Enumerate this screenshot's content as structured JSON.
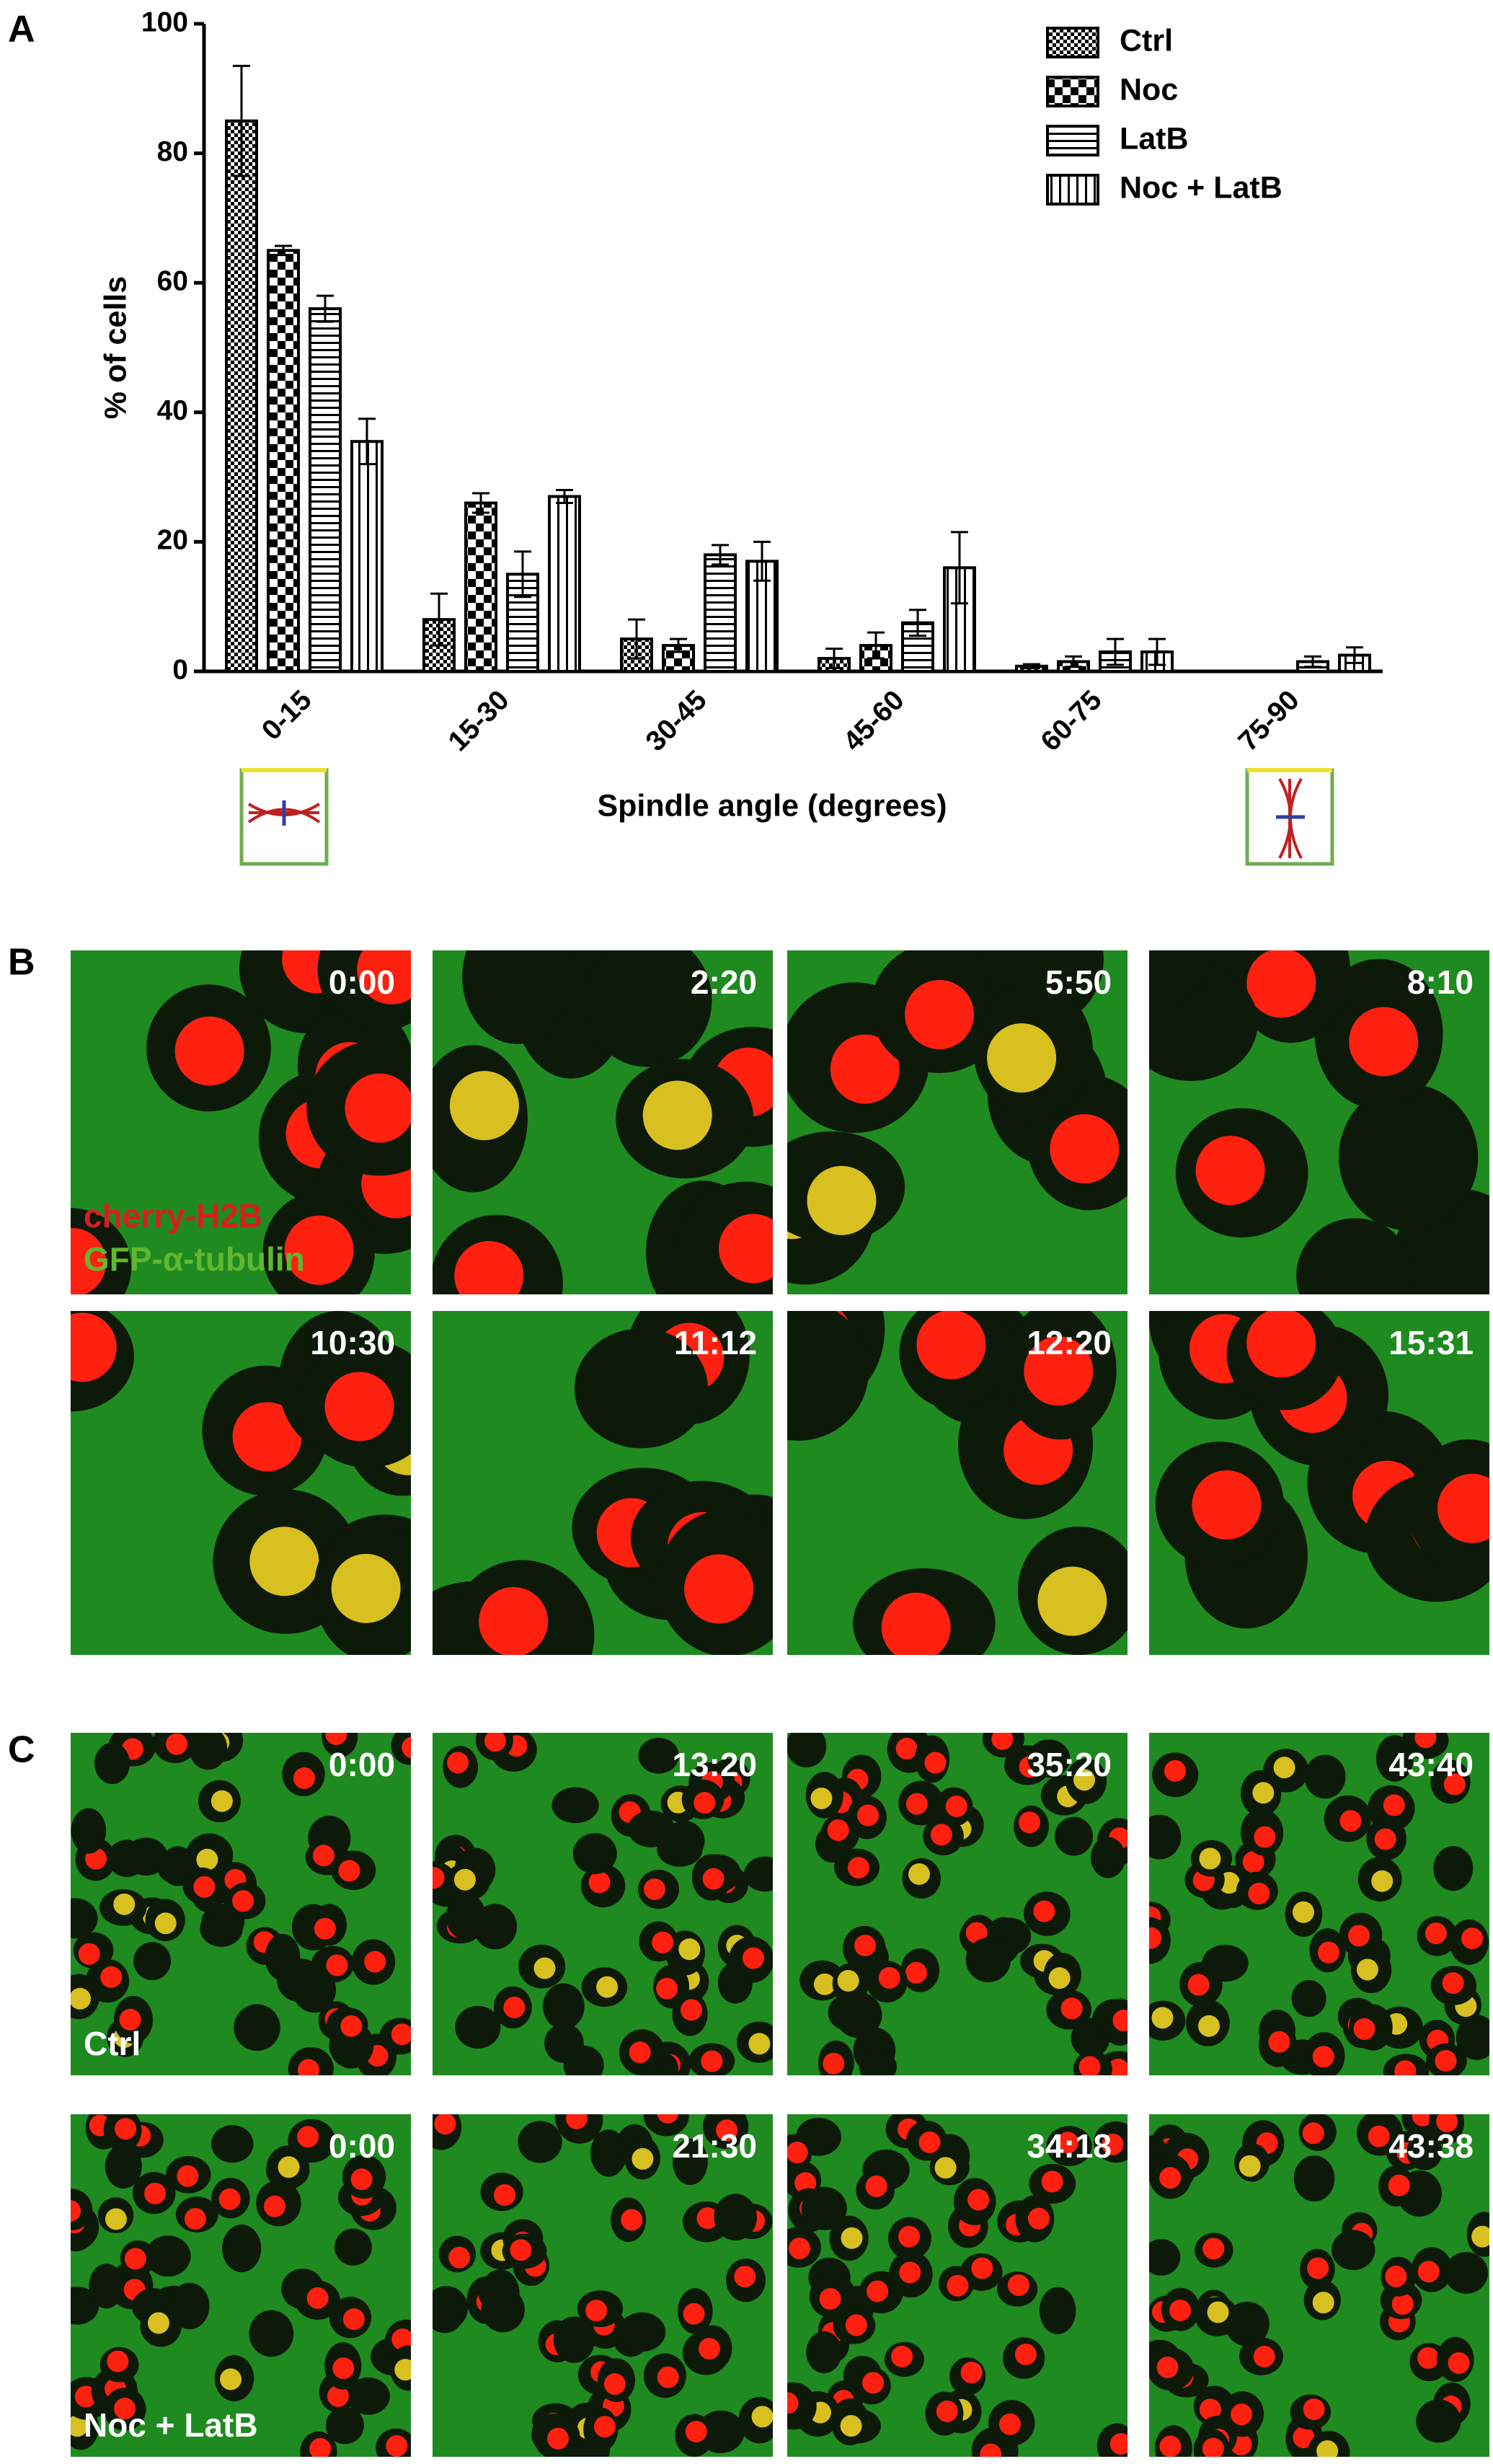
{
  "figure_labels": [
    "A",
    "B",
    "C"
  ],
  "chart_data": {
    "type": "bar",
    "x_label": "Spindle angle (degrees)",
    "y_label": "% of cells",
    "categories": [
      "0-15",
      "15-30",
      "30-45",
      "45-60",
      "60-75",
      "75-90"
    ],
    "series": [
      {
        "name": "Ctrl",
        "color": "#000000",
        "pattern": "checker-fine",
        "values": [
          85,
          8,
          5,
          2,
          0.8,
          0
        ],
        "errors": [
          8.5,
          4,
          3,
          1.5,
          0.3,
          0
        ]
      },
      {
        "name": "Noc",
        "color": "#000000",
        "pattern": "checker-coarse",
        "values": [
          65,
          26,
          4,
          4,
          1.5,
          0
        ],
        "errors": [
          0.7,
          1.5,
          1,
          2,
          0.8,
          0
        ]
      },
      {
        "name": "LatB",
        "color": "#000000",
        "pattern": "hlines",
        "values": [
          56,
          15,
          18,
          7.5,
          3,
          1.5
        ],
        "errors": [
          2,
          3.5,
          1.5,
          2,
          2,
          0.8
        ]
      },
      {
        "name": "Noc + LatB",
        "color": "#000000",
        "pattern": "vlines",
        "values": [
          35.5,
          27,
          17,
          16,
          3,
          2.5
        ],
        "errors": [
          3.5,
          1,
          3,
          5.5,
          2,
          1.2
        ]
      }
    ],
    "ylim": [
      0,
      100
    ],
    "yticks": [
      0,
      20,
      40,
      60,
      80,
      100
    ],
    "grid": false,
    "legend": "top-right"
  },
  "panel_b": {
    "timestamps": [
      "0:00",
      "2:20",
      "5:50",
      "8:10",
      "10:30",
      "11:12",
      "12:20",
      "15:31"
    ],
    "channels": [
      "cherry-H2B",
      "GFP-α-tubulin"
    ]
  },
  "panel_c": {
    "rows": [
      {
        "label": "Ctrl",
        "timestamps": [
          "0:00",
          "13:20",
          "35:20",
          "43:40"
        ]
      },
      {
        "label": "Noc + LatB",
        "timestamps": [
          "0:00",
          "21:30",
          "34:18",
          "43:38"
        ]
      }
    ]
  }
}
